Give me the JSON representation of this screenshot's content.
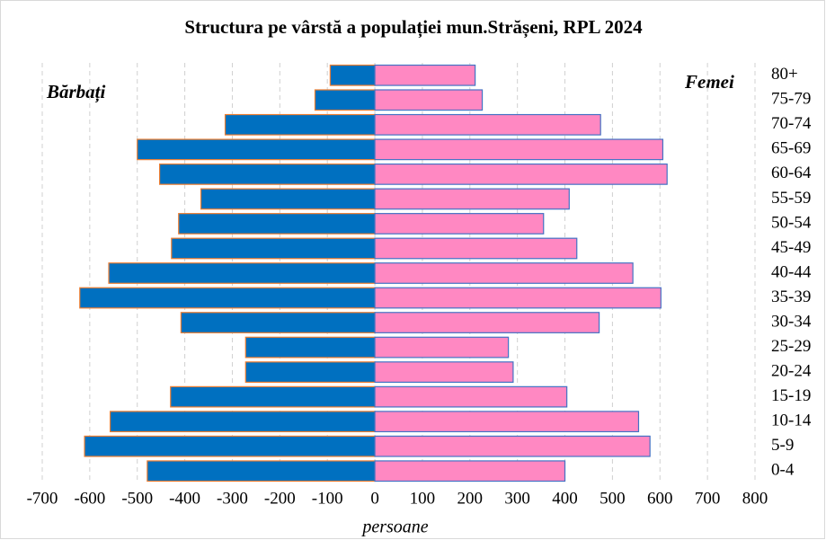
{
  "chart_data": {
    "type": "bar",
    "orientation": "horizontal",
    "stacked": true,
    "title": "Structura  pe vârstă  a populației  mun.Strășeni,  RPL 2024",
    "x_label": "persoane",
    "categories": [
      "80+",
      "75-79",
      "70-74",
      "65-69",
      "60-64",
      "55-59",
      "50-54",
      "45-49",
      "40-44",
      "35-39",
      "30-34",
      "25-29",
      "20-24",
      "15-19",
      "10-14",
      "5-9",
      "0-4"
    ],
    "series": [
      {
        "name": "Bărbați",
        "color": "#0070c0",
        "edge_color": "#ed7d31",
        "values": [
          -94,
          -126,
          -315,
          -500,
          -453,
          -366,
          -413,
          -428,
          -560,
          -621,
          -408,
          -272,
          -272,
          -430,
          -557,
          -611,
          -479
        ]
      },
      {
        "name": "Femei",
        "color": "#ff88c2",
        "edge_color": "#4472c4",
        "values": [
          211,
          226,
          475,
          606,
          615,
          409,
          355,
          425,
          543,
          602,
          472,
          281,
          291,
          404,
          555,
          579,
          400
        ]
      }
    ],
    "xlim": [
      -700,
      800
    ],
    "xticks": [
      -700,
      -600,
      -500,
      -400,
      -300,
      -200,
      -100,
      0,
      100,
      200,
      300,
      400,
      500,
      600,
      700,
      800
    ],
    "grid": true
  }
}
